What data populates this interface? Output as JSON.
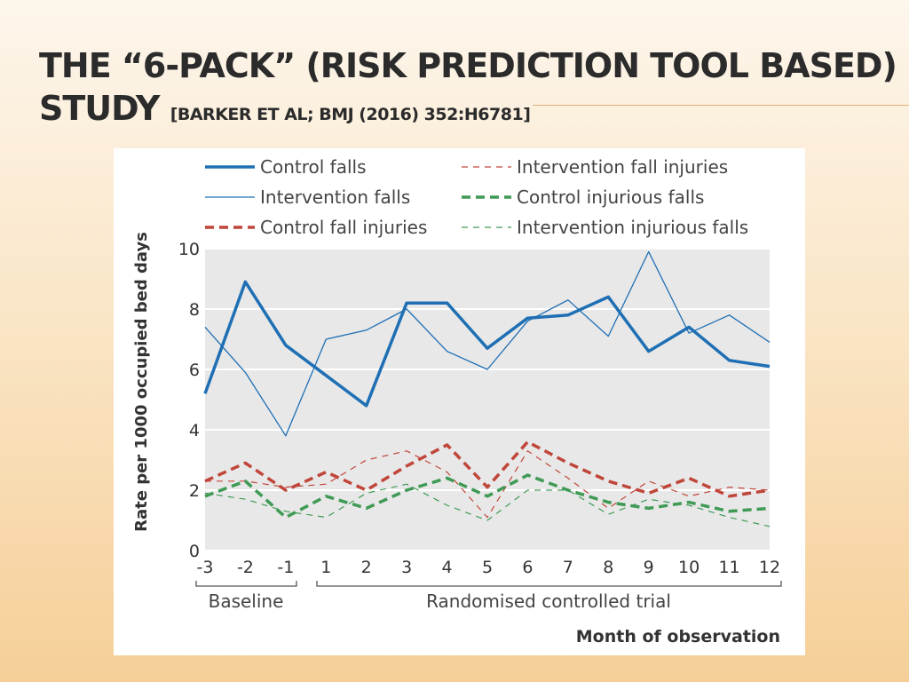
{
  "slide": {
    "title_line1": "THE “6-PACK” (RISK PREDICTION TOOL BASED)",
    "title_line2": "STUDY",
    "reference": "[BARKER et al; BMJ (2016) 352:h6781]"
  },
  "chart_data": {
    "type": "line",
    "xlabel": "Month of observation",
    "ylabel": "Rate per 1000 occupied bed days",
    "x": [
      -3,
      -2,
      -1,
      1,
      2,
      3,
      4,
      5,
      6,
      7,
      8,
      9,
      10,
      11,
      12
    ],
    "x_tick_labels": [
      "-3",
      "-2",
      "-1",
      "1",
      "2",
      "3",
      "4",
      "5",
      "6",
      "7",
      "8",
      "9",
      "10",
      "11",
      "12"
    ],
    "ylim": [
      0,
      10
    ],
    "y_ticks": [
      0,
      2,
      4,
      6,
      8,
      10
    ],
    "grid": "horizontal",
    "legend_position": "top",
    "period_labels": {
      "baseline": "Baseline",
      "trial": "Randomised controlled trial"
    },
    "series": [
      {
        "name": "Control falls",
        "color": "#1f6fb4",
        "style": "solid-thick",
        "values": [
          5.2,
          8.9,
          6.8,
          5.8,
          4.8,
          8.2,
          8.2,
          6.7,
          7.7,
          7.8,
          8.4,
          6.6,
          7.4,
          6.3,
          6.1
        ]
      },
      {
        "name": "Intervention falls",
        "color": "#1f6fb4",
        "style": "solid-thin",
        "values": [
          7.4,
          5.9,
          3.8,
          7.0,
          7.3,
          8.0,
          6.6,
          6.0,
          7.6,
          8.3,
          7.1,
          9.9,
          7.2,
          7.8,
          6.9
        ]
      },
      {
        "name": "Control fall injuries",
        "color": "#c0463a",
        "style": "dashed-thick",
        "values": [
          2.3,
          2.9,
          2.0,
          2.6,
          2.0,
          2.8,
          3.5,
          2.1,
          3.6,
          2.9,
          2.3,
          1.9,
          2.4,
          1.8,
          2.0
        ]
      },
      {
        "name": "Intervention fall injuries",
        "color": "#c0463a",
        "style": "dashed-thin",
        "values": [
          2.3,
          2.3,
          2.1,
          2.2,
          3.0,
          3.3,
          2.6,
          1.1,
          3.3,
          2.4,
          1.4,
          2.3,
          1.8,
          2.1,
          2.0
        ]
      },
      {
        "name": "Control injurious falls",
        "color": "#3f9a55",
        "style": "dashed-thick",
        "values": [
          1.8,
          2.3,
          1.1,
          1.8,
          1.4,
          2.0,
          2.4,
          1.8,
          2.5,
          2.0,
          1.6,
          1.4,
          1.6,
          1.3,
          1.4
        ]
      },
      {
        "name": "Intervention injurious falls",
        "color": "#3f9a55",
        "style": "dashed-thin",
        "values": [
          1.9,
          1.7,
          1.3,
          1.1,
          1.9,
          2.2,
          1.5,
          1.0,
          2.0,
          2.0,
          1.2,
          1.7,
          1.5,
          1.1,
          0.8
        ]
      }
    ]
  }
}
